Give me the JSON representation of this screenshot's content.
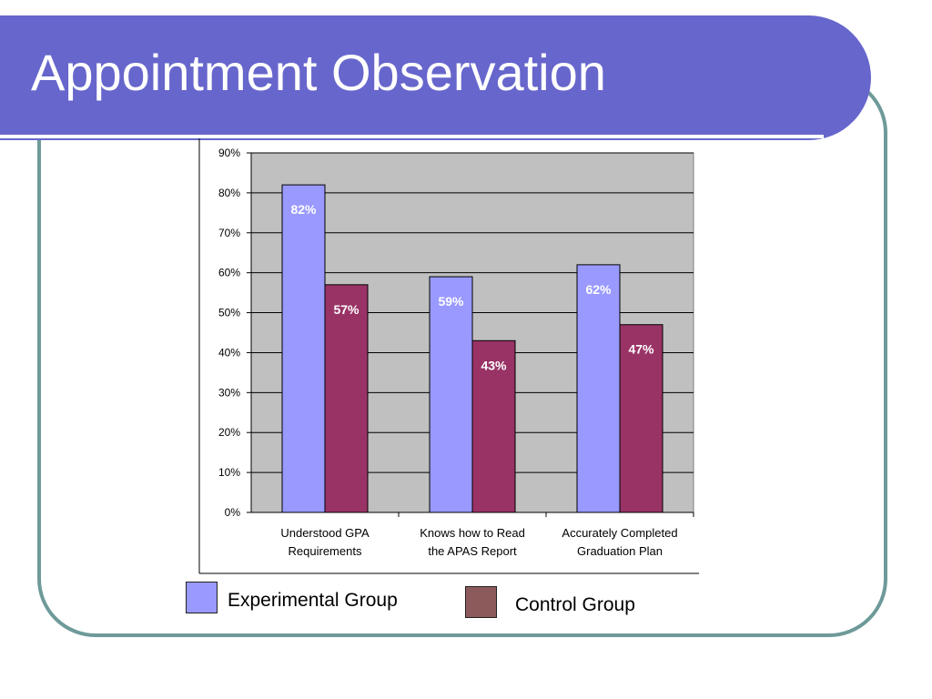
{
  "slide": {
    "title": "Appointment Observation"
  },
  "colors": {
    "title_band": "#6766cc",
    "frame_border": "#6e9a99",
    "plot_background": "#c0c0c0",
    "experimental": "#9999ff",
    "control": "#993366",
    "control_legend": "#8c5a5a"
  },
  "chart_data": {
    "type": "bar",
    "categories": [
      [
        "Understood GPA",
        "Requirements"
      ],
      [
        "Knows how to Read",
        "the APAS Report"
      ],
      [
        "Accurately Completed",
        "Graduation Plan"
      ]
    ],
    "series": [
      {
        "name": "Experimental Group",
        "values": [
          82,
          59,
          62
        ],
        "labels": [
          "82%",
          "59%",
          "62%"
        ]
      },
      {
        "name": "Control Group",
        "values": [
          57,
          43,
          47
        ],
        "labels": [
          "57%",
          "43%",
          "47%"
        ]
      }
    ],
    "ylim": [
      0,
      90
    ],
    "yticks": [
      "0%",
      "10%",
      "20%",
      "30%",
      "40%",
      "50%",
      "60%",
      "70%",
      "80%",
      "90%"
    ],
    "grid": true,
    "legend": "bottom"
  }
}
